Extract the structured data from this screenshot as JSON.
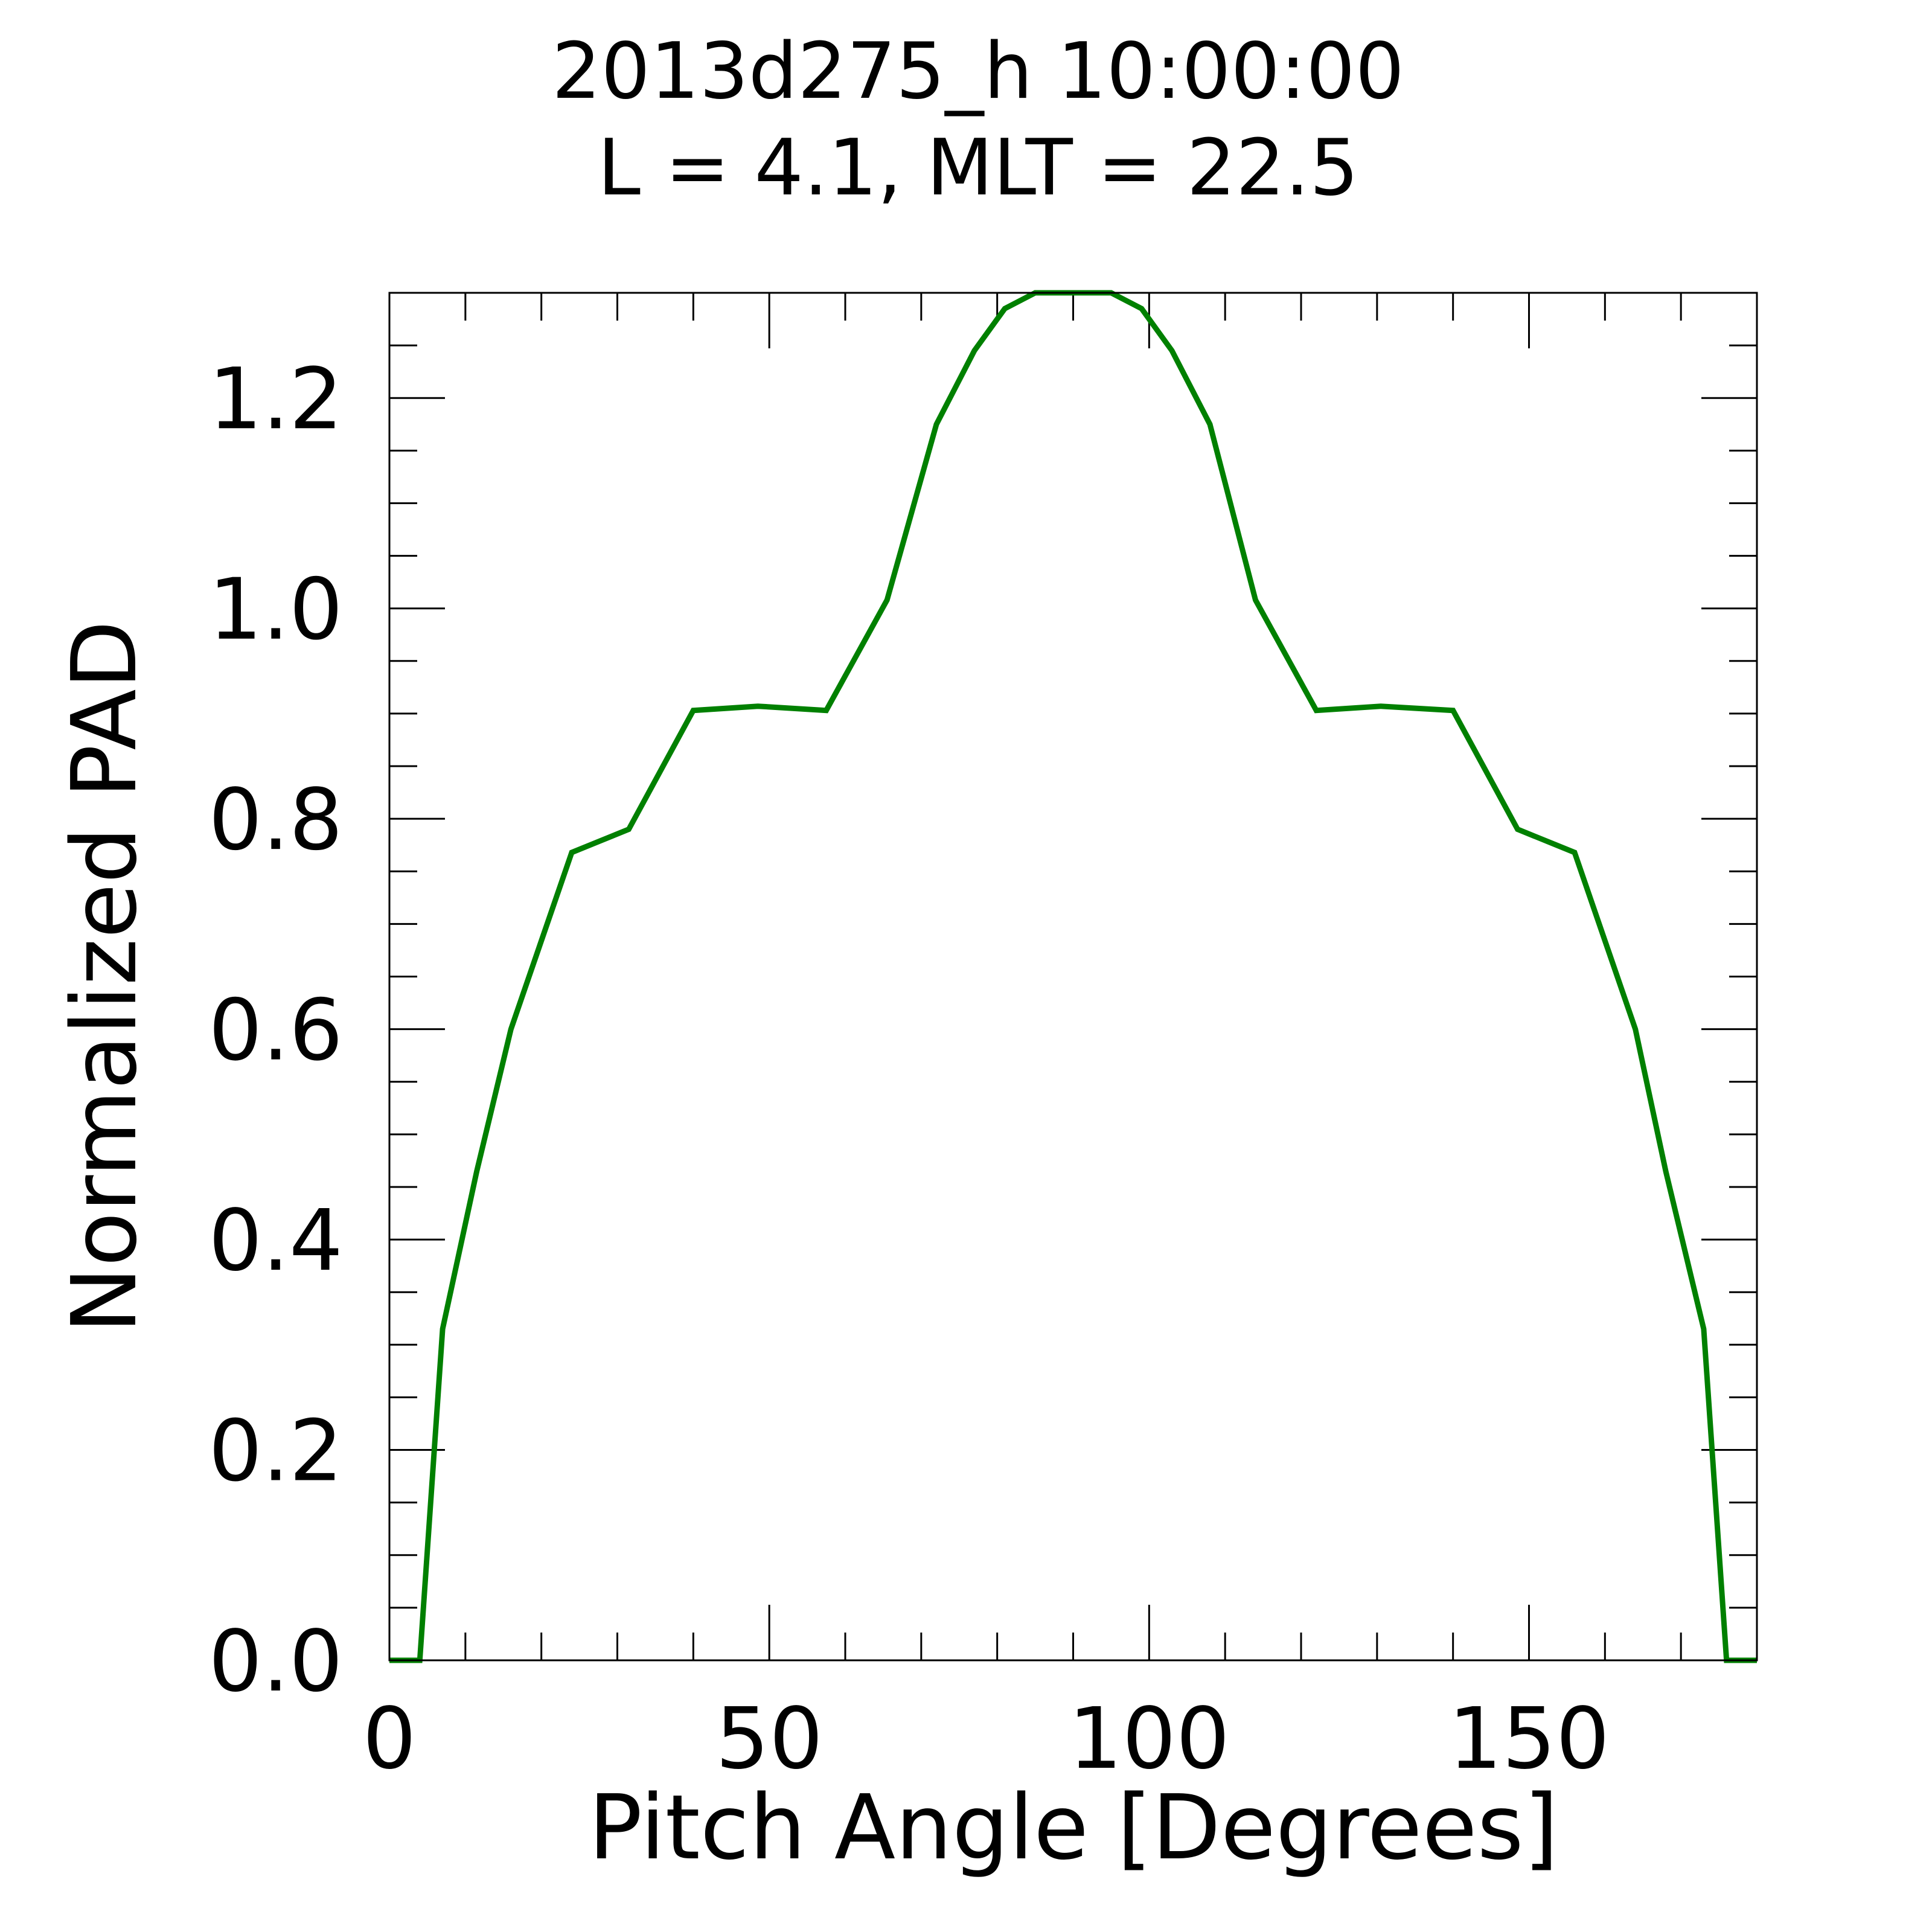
{
  "chart_data": {
    "type": "line",
    "title": "2013d275_h  10:00:00",
    "subtitle": "L = 4.1, MLT = 22.5",
    "xlabel": "Pitch Angle [Degrees]",
    "ylabel": "Normalized PAD",
    "xlim": [
      0,
      180
    ],
    "ylim": [
      0,
      1.3
    ],
    "x_ticks": [
      "0",
      "50",
      "100",
      "150"
    ],
    "y_ticks": [
      "0.0",
      "0.2",
      "0.4",
      "0.6",
      "0.8",
      "1.0",
      "1.2"
    ],
    "grid": false,
    "series": [
      {
        "color": "#008000",
        "x": [
          0,
          4,
          7,
          11.5,
          16,
          24,
          31.5,
          40,
          48.5,
          57.5,
          65.5,
          72,
          77,
          81,
          85,
          95,
          99,
          103,
          108,
          114,
          122,
          130.5,
          140,
          148.5,
          156,
          164,
          168,
          173,
          176,
          180
        ],
        "y": [
          0,
          0,
          0.315,
          0.465,
          0.6,
          0.768,
          0.79,
          0.903,
          0.907,
          0.903,
          1.008,
          1.175,
          1.245,
          1.285,
          1.3,
          1.3,
          1.285,
          1.245,
          1.175,
          1.008,
          0.903,
          0.907,
          0.903,
          0.79,
          0.768,
          0.6,
          0.465,
          0.315,
          0,
          0
        ]
      }
    ]
  }
}
